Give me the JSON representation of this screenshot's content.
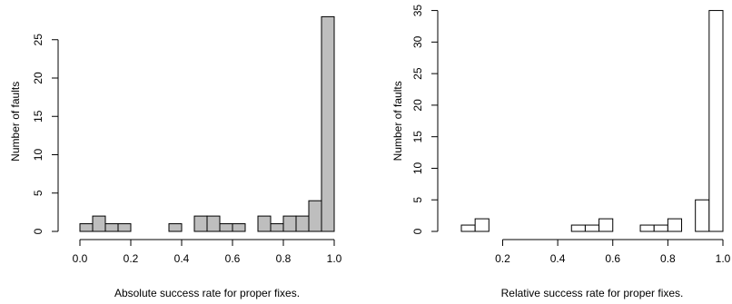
{
  "chart_data": [
    {
      "type": "bar",
      "subtype": "histogram",
      "xlabel": "Absolute success rate for proper fixes.",
      "ylabel": "Number of faults",
      "bar_fill": "#bebebe",
      "bin_width": 0.05,
      "xlim": [
        0.0,
        1.0
      ],
      "ylim": [
        0,
        28
      ],
      "x_ticks": [
        0.0,
        0.2,
        0.4,
        0.6,
        0.8,
        1.0
      ],
      "x_tick_labels": [
        "0.0",
        "0.2",
        "0.4",
        "0.6",
        "0.8",
        "1.0"
      ],
      "y_ticks": [
        0,
        5,
        10,
        15,
        20,
        25
      ],
      "y_tick_labels": [
        "0",
        "5",
        "10",
        "15",
        "20",
        "25"
      ],
      "bins": [
        {
          "start": 0.0,
          "end": 0.05,
          "count": 1
        },
        {
          "start": 0.05,
          "end": 0.1,
          "count": 2
        },
        {
          "start": 0.1,
          "end": 0.15,
          "count": 1
        },
        {
          "start": 0.15,
          "end": 0.2,
          "count": 1
        },
        {
          "start": 0.35,
          "end": 0.4,
          "count": 1
        },
        {
          "start": 0.45,
          "end": 0.5,
          "count": 2
        },
        {
          "start": 0.5,
          "end": 0.55,
          "count": 2
        },
        {
          "start": 0.55,
          "end": 0.6,
          "count": 1
        },
        {
          "start": 0.6,
          "end": 0.65,
          "count": 1
        },
        {
          "start": 0.7,
          "end": 0.75,
          "count": 2
        },
        {
          "start": 0.75,
          "end": 0.8,
          "count": 1
        },
        {
          "start": 0.8,
          "end": 0.85,
          "count": 2
        },
        {
          "start": 0.85,
          "end": 0.9,
          "count": 2
        },
        {
          "start": 0.9,
          "end": 0.95,
          "count": 4
        },
        {
          "start": 0.95,
          "end": 1.0,
          "count": 28
        }
      ]
    },
    {
      "type": "bar",
      "subtype": "histogram",
      "xlabel": "Relative success rate for proper fixes.",
      "ylabel": "Number of faults",
      "bar_fill": "#ffffff",
      "bin_width": 0.05,
      "xlim": [
        0.05,
        1.0
      ],
      "ylim": [
        0,
        35
      ],
      "x_ticks": [
        0.2,
        0.4,
        0.6,
        0.8,
        1.0
      ],
      "x_tick_labels": [
        "0.2",
        "0.4",
        "0.6",
        "0.8",
        "1.0"
      ],
      "y_ticks": [
        0,
        5,
        10,
        15,
        20,
        25,
        30,
        35
      ],
      "y_tick_labels": [
        "0",
        "5",
        "10",
        "15",
        "20",
        "25",
        "30",
        "35"
      ],
      "bins": [
        {
          "start": 0.05,
          "end": 0.1,
          "count": 1
        },
        {
          "start": 0.1,
          "end": 0.15,
          "count": 2
        },
        {
          "start": 0.45,
          "end": 0.5,
          "count": 1
        },
        {
          "start": 0.5,
          "end": 0.55,
          "count": 1
        },
        {
          "start": 0.55,
          "end": 0.6,
          "count": 2
        },
        {
          "start": 0.7,
          "end": 0.75,
          "count": 1
        },
        {
          "start": 0.75,
          "end": 0.8,
          "count": 1
        },
        {
          "start": 0.8,
          "end": 0.85,
          "count": 2
        },
        {
          "start": 0.9,
          "end": 0.95,
          "count": 5
        },
        {
          "start": 0.95,
          "end": 1.0,
          "count": 35
        }
      ]
    }
  ]
}
